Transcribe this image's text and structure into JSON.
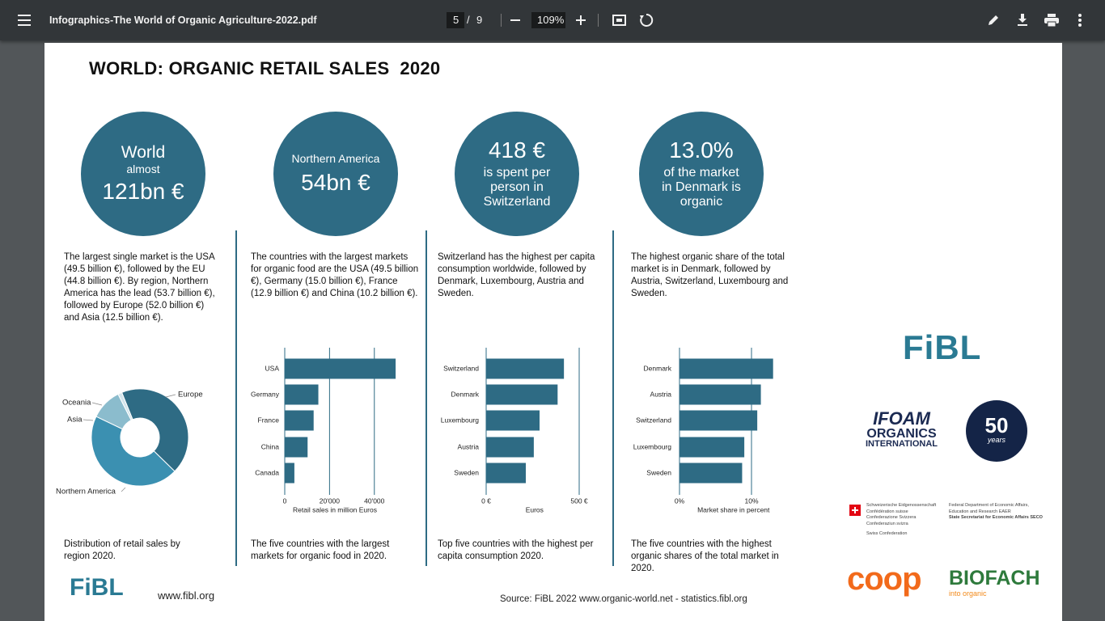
{
  "toolbar": {
    "filename": "Infographics-The World of Organic Agriculture-2022.pdf",
    "page": "5",
    "separator": "/",
    "total": "9",
    "zoom": "109%"
  },
  "title": "WORLD: ORGANIC RETAIL SALES  2020",
  "panels": [
    {
      "circle": [
        "World",
        "almost",
        "121bn €"
      ],
      "text": "The largest single market is the USA (49.5 billion €), followed by the EU (44.8 billion €). By region, Northern America has the lead (53.7 billion €), followed by Europe (52.0 billion €) and Asia (12.5 billion €).",
      "caption": "Distribution of retail sales by region 2020."
    },
    {
      "circle": [
        "Northern America",
        "54bn €"
      ],
      "text": "The countries with the largest markets for organic food are the USA (49.5 billion €), Germany (15.0 billion €), France (12.9 billion €) and China (10.2 billion €).",
      "caption": "The five countries with the largest markets for organic food in 2020."
    },
    {
      "circle": [
        "418 €",
        "is spent per",
        "person in",
        "Switzerland"
      ],
      "text": "Switzerland has the highest per capita consumption worldwide, followed by Denmark, Luxembourg, Austria and Sweden.",
      "caption": "Top five countries with the highest per capita consumption 2020."
    },
    {
      "circle": [
        "13.0%",
        "of the market",
        "in Denmark is",
        "organic"
      ],
      "text": "The highest organic share of the total market is in Denmark, followed by Austria, Switzerland, Luxembourg and Sweden.",
      "caption": "The five countries with the highest organic shares of the total market in 2020."
    }
  ],
  "charts": [
    {
      "type": "donut",
      "categories": [
        "Europe",
        "Northern America",
        "Asia",
        "Oceania"
      ],
      "values": [
        52.0,
        53.7,
        12.5,
        1.6
      ],
      "colors": [
        "#2e6b84",
        "#3b90b1",
        "#8bbccd",
        "#d3e5ec"
      ]
    },
    {
      "type": "hbar",
      "categories": [
        "USA",
        "Germany",
        "France",
        "China",
        "Canada"
      ],
      "values": [
        49500,
        15000,
        12900,
        10200,
        4300
      ],
      "color": "#2e6b84",
      "xlim": [
        0,
        52000
      ],
      "xticks": [
        0,
        {
          "value": 20000,
          "label": "20'000"
        },
        {
          "value": 40000,
          "label": "40'000"
        }
      ],
      "xlabel": "Retail sales in million Euros"
    },
    {
      "type": "hbar",
      "categories": [
        "Switzerland",
        "Denmark",
        "Luxembourg",
        "Austria",
        "Sweden"
      ],
      "values": [
        418,
        384,
        287,
        256,
        213
      ],
      "color": "#2e6b84",
      "xlim": [
        0,
        520
      ],
      "xticks": [
        {
          "value": 0,
          "label": "0 €"
        },
        {
          "value": 500,
          "label": "500 €"
        }
      ],
      "xlabel": "Euros"
    },
    {
      "type": "hbar",
      "categories": [
        "Denmark",
        "Austria",
        "Switzerland",
        "Luxembourg",
        "Sweden"
      ],
      "values": [
        13.0,
        11.3,
        10.8,
        9.0,
        8.7
      ],
      "color": "#2e6b84",
      "xlim": [
        0,
        15
      ],
      "xticks": [
        {
          "value": 0,
          "label": "0%"
        },
        {
          "value": 10,
          "label": "10%"
        }
      ],
      "xlabel": "Market share in percent"
    }
  ],
  "logos": {
    "fibl": "FiBL",
    "ifoam": [
      "IFOAM",
      "ORGANICS",
      "INTERNATIONAL"
    ],
    "fifty": "50",
    "years": "years",
    "swiss_left": [
      "Schweizerische Eidgenossenschaft",
      "Confédération suisse",
      "Confederazione Svizzera",
      "Confederaziun svizra"
    ],
    "swiss_sub": "Swiss Confederation",
    "swiss_right": [
      "Federal Department of Economic Affairs,",
      "Education and Research EAER",
      "State Secretariat for Economic Affairs SECO"
    ],
    "coop": "coop",
    "biofach": "BIOFACH",
    "biofach_sub": "into organic"
  },
  "footer": {
    "fibl": "FiBL",
    "url": "www.fibl.org",
    "source": "Source: FiBL 2022 www.organic-world.net - statistics.fibl.org"
  }
}
